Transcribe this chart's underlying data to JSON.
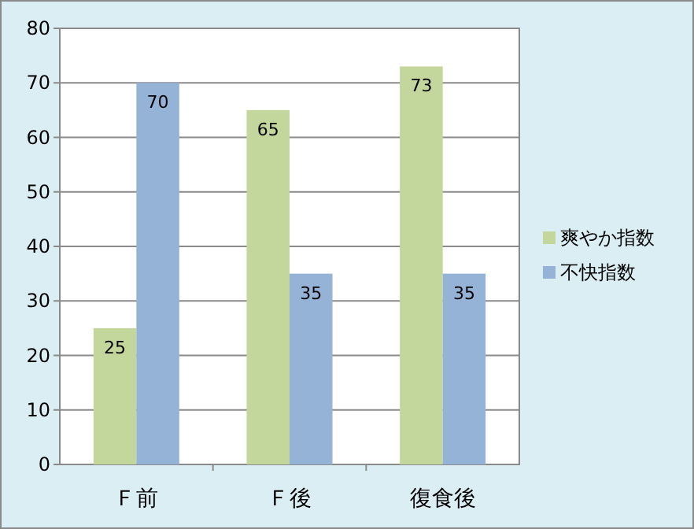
{
  "chart_data": {
    "type": "bar",
    "categories": [
      "Ｆ前",
      "Ｆ後",
      "復食後"
    ],
    "series": [
      {
        "name": "爽やか指数",
        "color": "#c3d69b",
        "values": [
          25,
          65,
          73
        ]
      },
      {
        "name": "不快指数",
        "color": "#95b3d7",
        "values": [
          70,
          35,
          35
        ]
      }
    ],
    "ylim": [
      0,
      80
    ],
    "yticks": [
      0,
      10,
      20,
      30,
      40,
      50,
      60,
      70,
      80
    ],
    "grid": "y",
    "legend": "right",
    "data_labels": true
  }
}
